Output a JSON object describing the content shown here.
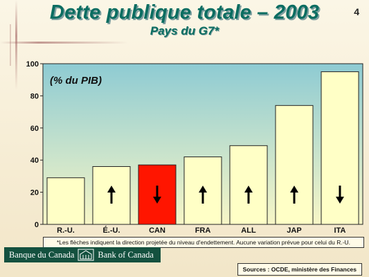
{
  "slide": {
    "page_number": "4",
    "footnote": "*Les flèches indiquent la direction projetée du niveau d'endettement. Aucune variation prévue pour celui du R.-U.",
    "sources": "Sources : OCDE, ministère des Finances",
    "logo": {
      "french": "Banque du Canada",
      "english": "Bank of Canada"
    }
  },
  "colors": {
    "title": "#0b6d61",
    "bar_fill": "#ffffc6",
    "highlight_fill": "#ff1500",
    "plot_top": "#8ecbd3",
    "plot_bottom": "#f7f6c6"
  },
  "chart_data": {
    "type": "bar",
    "title": "Dette publique totale – 2003",
    "subtitle": "Pays du G7*",
    "unit_label": "(% du PIB)",
    "categories": [
      "R.-U.",
      "É.-U.",
      "CAN",
      "FRA",
      "ALL",
      "JAP",
      "ITA"
    ],
    "values": [
      29,
      36,
      37,
      42,
      49,
      74,
      95
    ],
    "arrows": [
      "none",
      "up",
      "down",
      "up",
      "up",
      "up",
      "down"
    ],
    "highlight": [
      false,
      false,
      true,
      false,
      false,
      false,
      false
    ],
    "ylim": [
      0,
      100
    ],
    "yticks": [
      0,
      20,
      40,
      60,
      80,
      100
    ],
    "grid": false
  }
}
